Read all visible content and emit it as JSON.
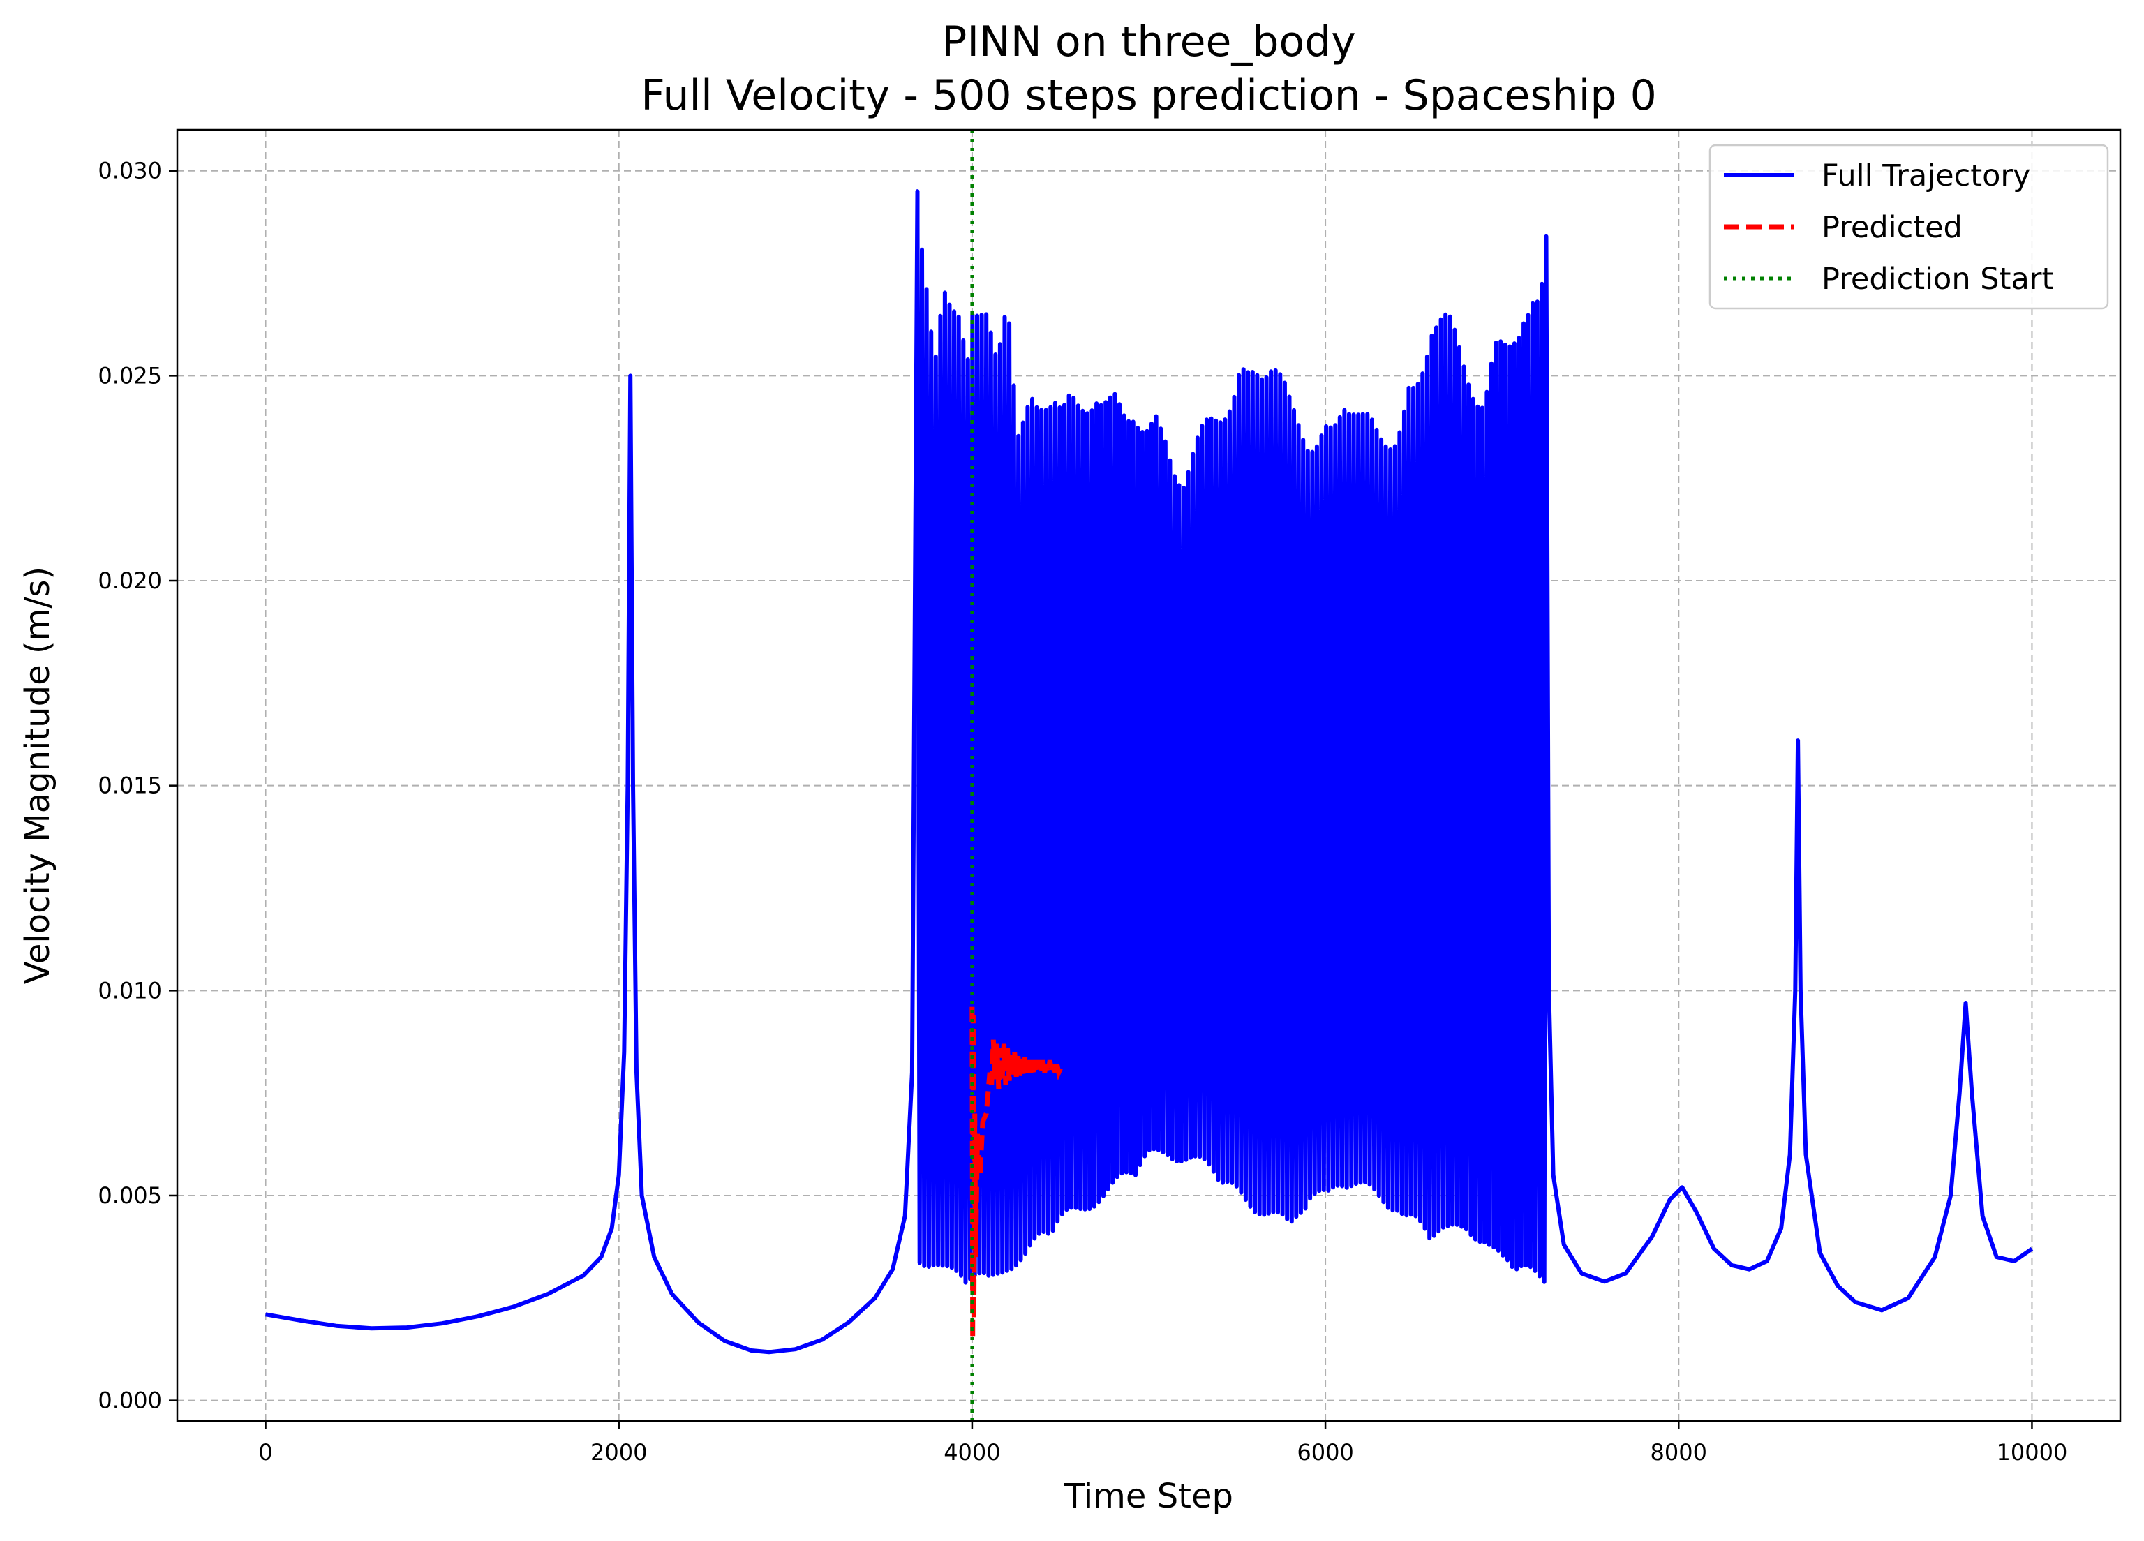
{
  "chart_data": {
    "type": "line",
    "title": "PINN on three_body",
    "subtitle": "Full Velocity - 500 steps prediction - Spaceship 0",
    "xlabel": "Time Step",
    "ylabel": "Velocity Magnitude (m/s)",
    "xlim": [
      -500,
      10500
    ],
    "ylim": [
      -0.0005,
      0.031
    ],
    "x_ticks": [
      0,
      2000,
      4000,
      6000,
      8000,
      10000
    ],
    "y_ticks": [
      0.0,
      0.005,
      0.01,
      0.015,
      0.02,
      0.025,
      0.03
    ],
    "x_tick_labels": [
      "0",
      "2000",
      "4000",
      "6000",
      "8000",
      "10000"
    ],
    "y_tick_labels": [
      "0.000",
      "0.005",
      "0.010",
      "0.015",
      "0.020",
      "0.025",
      "0.030"
    ],
    "grid": true,
    "legend_position": "top-right",
    "prediction_start": 4000,
    "series": [
      {
        "name": "Full Trajectory",
        "color": "#0000ff",
        "style": "solid",
        "smooth_points": [
          [
            0,
            0.0021
          ],
          [
            200,
            0.00195
          ],
          [
            400,
            0.00182
          ],
          [
            600,
            0.00176
          ],
          [
            800,
            0.00178
          ],
          [
            1000,
            0.00188
          ],
          [
            1200,
            0.00205
          ],
          [
            1400,
            0.00228
          ],
          [
            1600,
            0.0026
          ],
          [
            1800,
            0.00305
          ],
          [
            1900,
            0.0035
          ],
          [
            1960,
            0.0042
          ],
          [
            2000,
            0.0055
          ],
          [
            2030,
            0.0085
          ],
          [
            2050,
            0.015
          ],
          [
            2065,
            0.025
          ],
          [
            2080,
            0.015
          ],
          [
            2100,
            0.008
          ],
          [
            2130,
            0.005
          ],
          [
            2200,
            0.0035
          ],
          [
            2300,
            0.0026
          ],
          [
            2450,
            0.0019
          ],
          [
            2600,
            0.00145
          ],
          [
            2750,
            0.00122
          ],
          [
            2850,
            0.00118
          ],
          [
            3000,
            0.00125
          ],
          [
            3150,
            0.00148
          ],
          [
            3300,
            0.0019
          ],
          [
            3450,
            0.0025
          ],
          [
            3550,
            0.0032
          ],
          [
            3620,
            0.0045
          ],
          [
            3660,
            0.008
          ],
          [
            3690,
            0.0295
          ]
        ],
        "oscillation": {
          "x_start": 3690,
          "x_end": 7250,
          "period": 26,
          "peaks": [
            [
              3700,
              0.0296
            ],
            [
              3740,
              0.0283
            ],
            [
              3790,
              0.0262
            ],
            [
              3830,
              0.0272
            ],
            [
              3870,
              0.027
            ],
            [
              3920,
              0.0272
            ],
            [
              3980,
              0.0258
            ],
            [
              4000,
              0.0268
            ],
            [
              4040,
              0.0265
            ],
            [
              4080,
              0.0266
            ],
            [
              4140,
              0.026
            ],
            [
              4200,
              0.0281
            ],
            [
              4260,
              0.0245
            ],
            [
              4330,
              0.0245
            ],
            [
              4400,
              0.0246
            ],
            [
              4500,
              0.0243
            ],
            [
              4600,
              0.0248
            ],
            [
              4700,
              0.0256
            ],
            [
              4800,
              0.0247
            ],
            [
              4900,
              0.0239
            ],
            [
              5000,
              0.024
            ],
            [
              5100,
              0.0242
            ],
            [
              5200,
              0.0233
            ],
            [
              5300,
              0.0238
            ],
            [
              5400,
              0.0243
            ],
            [
              5500,
              0.025
            ],
            [
              5600,
              0.0262
            ],
            [
              5700,
              0.0258
            ],
            [
              5800,
              0.0246
            ],
            [
              5900,
              0.024
            ],
            [
              6000,
              0.0238
            ],
            [
              6100,
              0.0252
            ],
            [
              6200,
              0.0243
            ],
            [
              6300,
              0.0241
            ],
            [
              6400,
              0.0243
            ],
            [
              6500,
              0.025
            ],
            [
              6600,
              0.0266
            ],
            [
              6700,
              0.0266
            ],
            [
              6800,
              0.0259
            ],
            [
              6900,
              0.0251
            ],
            [
              7000,
              0.0263
            ],
            [
              7100,
              0.0261
            ],
            [
              7200,
              0.027
            ],
            [
              7250,
              0.0284
            ]
          ],
          "troughs": [
            [
              3700,
              0.0032
            ],
            [
              3800,
              0.0033
            ],
            [
              3900,
              0.003
            ],
            [
              4000,
              0.0028
            ],
            [
              4100,
              0.0026
            ],
            [
              4200,
              0.0031
            ],
            [
              4300,
              0.0034
            ],
            [
              4400,
              0.0039
            ],
            [
              4500,
              0.0042
            ],
            [
              4600,
              0.0044
            ],
            [
              4700,
              0.0047
            ],
            [
              4800,
              0.005
            ],
            [
              4900,
              0.0054
            ],
            [
              5000,
              0.0058
            ],
            [
              5100,
              0.0059
            ],
            [
              5200,
              0.0057
            ],
            [
              5300,
              0.0055
            ],
            [
              5400,
              0.0053
            ],
            [
              5500,
              0.005
            ],
            [
              5600,
              0.0046
            ],
            [
              5700,
              0.0043
            ],
            [
              5800,
              0.0039
            ],
            [
              5900,
              0.0048
            ],
            [
              6000,
              0.0051
            ],
            [
              6100,
              0.0052
            ],
            [
              6200,
              0.0049
            ],
            [
              6300,
              0.0047
            ],
            [
              6400,
              0.0046
            ],
            [
              6500,
              0.0044
            ],
            [
              6600,
              0.0039
            ],
            [
              6700,
              0.0038
            ],
            [
              6800,
              0.004
            ],
            [
              6900,
              0.0038
            ],
            [
              7000,
              0.0033
            ],
            [
              7100,
              0.0031
            ],
            [
              7200,
              0.0027
            ],
            [
              7250,
              0.0026
            ]
          ]
        },
        "tail_points": [
          [
            7250,
            0.0284
          ],
          [
            7265,
            0.01
          ],
          [
            7290,
            0.0055
          ],
          [
            7350,
            0.0038
          ],
          [
            7450,
            0.0031
          ],
          [
            7580,
            0.0029
          ],
          [
            7700,
            0.0031
          ],
          [
            7850,
            0.004
          ],
          [
            7950,
            0.0049
          ],
          [
            8020,
            0.0052
          ],
          [
            8100,
            0.0046
          ],
          [
            8200,
            0.0037
          ],
          [
            8300,
            0.0033
          ],
          [
            8400,
            0.0032
          ],
          [
            8500,
            0.0034
          ],
          [
            8580,
            0.0042
          ],
          [
            8630,
            0.006
          ],
          [
            8660,
            0.01
          ],
          [
            8675,
            0.0161
          ],
          [
            8690,
            0.01
          ],
          [
            8720,
            0.006
          ],
          [
            8800,
            0.0036
          ],
          [
            8900,
            0.0028
          ],
          [
            9000,
            0.0024
          ],
          [
            9150,
            0.0022
          ],
          [
            9300,
            0.0025
          ],
          [
            9450,
            0.0035
          ],
          [
            9540,
            0.005
          ],
          [
            9590,
            0.0075
          ],
          [
            9625,
            0.0097
          ],
          [
            9660,
            0.0075
          ],
          [
            9720,
            0.0045
          ],
          [
            9800,
            0.0035
          ],
          [
            9900,
            0.0034
          ],
          [
            10000,
            0.0037
          ]
        ]
      },
      {
        "name": "Predicted",
        "color": "#ff0000",
        "style": "dashed",
        "points": [
          [
            4000,
            0.0096
          ],
          [
            4003,
            0.0015
          ],
          [
            4006,
            0.0094
          ],
          [
            4010,
            0.002
          ],
          [
            4015,
            0.007
          ],
          [
            4020,
            0.0035
          ],
          [
            4030,
            0.0065
          ],
          [
            4045,
            0.0055
          ],
          [
            4060,
            0.0068
          ],
          [
            4080,
            0.007
          ],
          [
            4100,
            0.008
          ],
          [
            4110,
            0.0077
          ],
          [
            4120,
            0.0088
          ],
          [
            4130,
            0.0078
          ],
          [
            4140,
            0.0087
          ],
          [
            4150,
            0.0076
          ],
          [
            4160,
            0.0086
          ],
          [
            4170,
            0.0078
          ],
          [
            4180,
            0.0087
          ],
          [
            4190,
            0.0077
          ],
          [
            4200,
            0.0086
          ],
          [
            4210,
            0.0078
          ],
          [
            4220,
            0.0085
          ],
          [
            4230,
            0.0079
          ],
          [
            4240,
            0.0085
          ],
          [
            4250,
            0.0079
          ],
          [
            4260,
            0.0084
          ],
          [
            4270,
            0.0079
          ],
          [
            4280,
            0.0084
          ],
          [
            4290,
            0.0079
          ],
          [
            4300,
            0.0084
          ],
          [
            4310,
            0.008
          ],
          [
            4320,
            0.0083
          ],
          [
            4330,
            0.008
          ],
          [
            4340,
            0.0083
          ],
          [
            4350,
            0.008
          ],
          [
            4360,
            0.0083
          ],
          [
            4370,
            0.008
          ],
          [
            4380,
            0.0083
          ],
          [
            4390,
            0.008
          ],
          [
            4400,
            0.0083
          ],
          [
            4410,
            0.008
          ],
          [
            4420,
            0.0082
          ],
          [
            4430,
            0.008
          ],
          [
            4440,
            0.0083
          ],
          [
            4450,
            0.008
          ],
          [
            4460,
            0.0082
          ],
          [
            4470,
            0.008
          ],
          [
            4480,
            0.0082
          ],
          [
            4490,
            0.008
          ],
          [
            4500,
            0.0081
          ]
        ]
      },
      {
        "name": "Prediction Start",
        "color": "#008000",
        "style": "dotted",
        "x": 4000
      }
    ]
  }
}
